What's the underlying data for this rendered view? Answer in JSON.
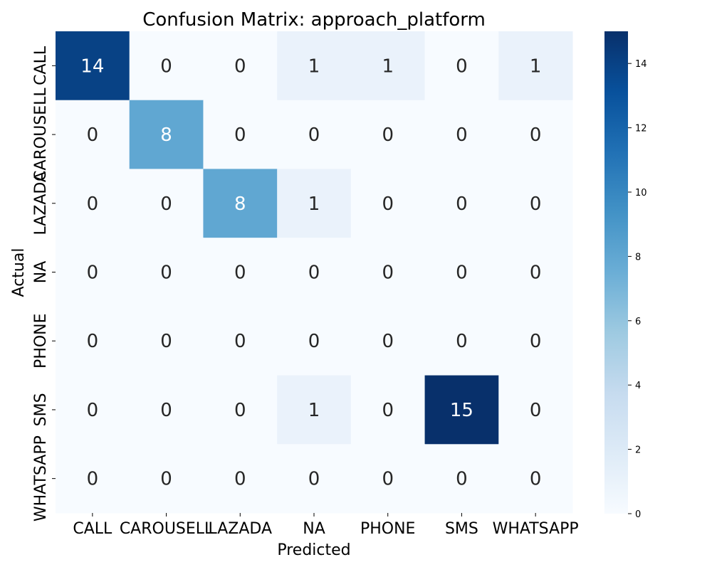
{
  "chart_data": {
    "type": "heatmap",
    "title": "Confusion Matrix: approach_platform",
    "xlabel": "Predicted",
    "ylabel": "Actual",
    "x_categories": [
      "CALL",
      "CAROUSELL",
      "LAZADA",
      "NA",
      "PHONE",
      "SMS",
      "WHATSAPP"
    ],
    "y_categories": [
      "CALL",
      "CAROUSELL",
      "LAZADA",
      "NA",
      "PHONE",
      "SMS",
      "WHATSAPP"
    ],
    "matrix": [
      [
        14,
        0,
        0,
        1,
        1,
        0,
        1
      ],
      [
        0,
        8,
        0,
        0,
        0,
        0,
        0
      ],
      [
        0,
        0,
        8,
        1,
        0,
        0,
        0
      ],
      [
        0,
        0,
        0,
        0,
        0,
        0,
        0
      ],
      [
        0,
        0,
        0,
        0,
        0,
        0,
        0
      ],
      [
        0,
        0,
        0,
        1,
        0,
        15,
        0
      ],
      [
        0,
        0,
        0,
        0,
        0,
        0,
        0
      ]
    ],
    "colorbar": {
      "range": [
        0,
        15
      ],
      "ticks": [
        0,
        2,
        4,
        6,
        8,
        10,
        12,
        14
      ],
      "colormap": "Blues",
      "low_color": "#f7fbff",
      "high_color": "#08306b"
    }
  }
}
